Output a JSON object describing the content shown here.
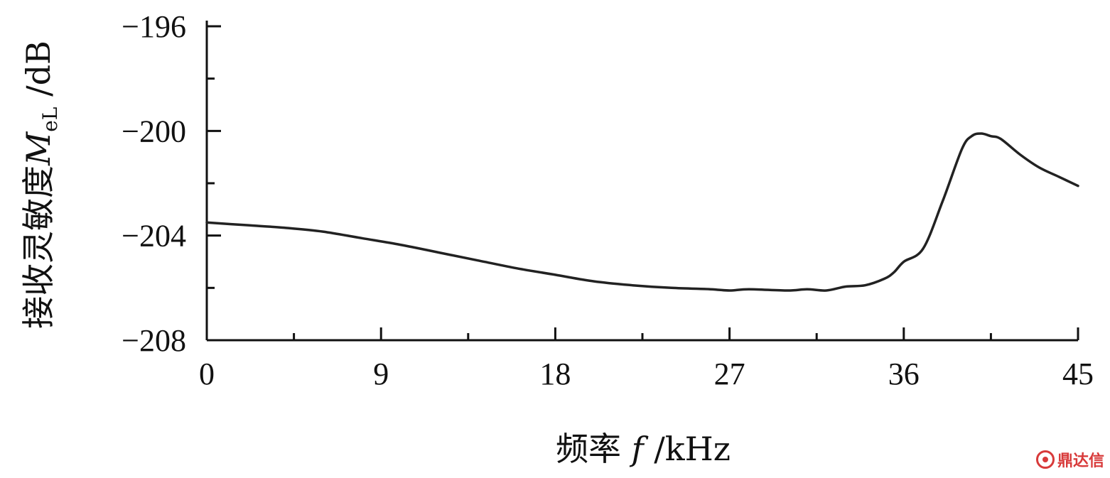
{
  "chart_data": {
    "type": "line",
    "xlabel_parts": [
      "频率 ",
      "f",
      " /kHz"
    ],
    "ylabel_parts": [
      "接收灵敏度",
      "M",
      "eL",
      " /dB"
    ],
    "xlim": [
      0,
      45
    ],
    "ylim": [
      -208,
      -196
    ],
    "x_ticks": [
      0,
      9,
      18,
      27,
      36,
      45
    ],
    "x_tick_labels": [
      "0",
      "9",
      "18",
      "27",
      "36",
      "45"
    ],
    "y_ticks": [
      -208,
      -204,
      -200,
      -196
    ],
    "y_tick_labels": [
      "−208",
      "−204",
      "−200",
      "−196"
    ],
    "x_minor_step": 4.5,
    "y_minor_step": 2,
    "grid": false,
    "series": [
      {
        "color": "#222222",
        "x": [
          0,
          2,
          4,
          6,
          8,
          10,
          12,
          14,
          16,
          18,
          20,
          22,
          24,
          26,
          27,
          28,
          30,
          31,
          32,
          33,
          34,
          35,
          35.5,
          36,
          37,
          38,
          39,
          39.5,
          40,
          40.5,
          41,
          42,
          43,
          44,
          45
        ],
        "y": [
          -203.5,
          -203.6,
          -203.7,
          -203.85,
          -204.1,
          -204.35,
          -204.65,
          -204.95,
          -205.25,
          -205.5,
          -205.75,
          -205.9,
          -206.0,
          -206.05,
          -206.1,
          -206.05,
          -206.1,
          -206.05,
          -206.1,
          -205.95,
          -205.9,
          -205.65,
          -205.4,
          -205.0,
          -204.5,
          -202.7,
          -200.7,
          -200.2,
          -200.1,
          -200.2,
          -200.3,
          -200.9,
          -201.4,
          -201.75,
          -202.1
        ]
      }
    ]
  },
  "watermark": {
    "text": "鼎达信",
    "icon": "brand-logo-icon"
  }
}
